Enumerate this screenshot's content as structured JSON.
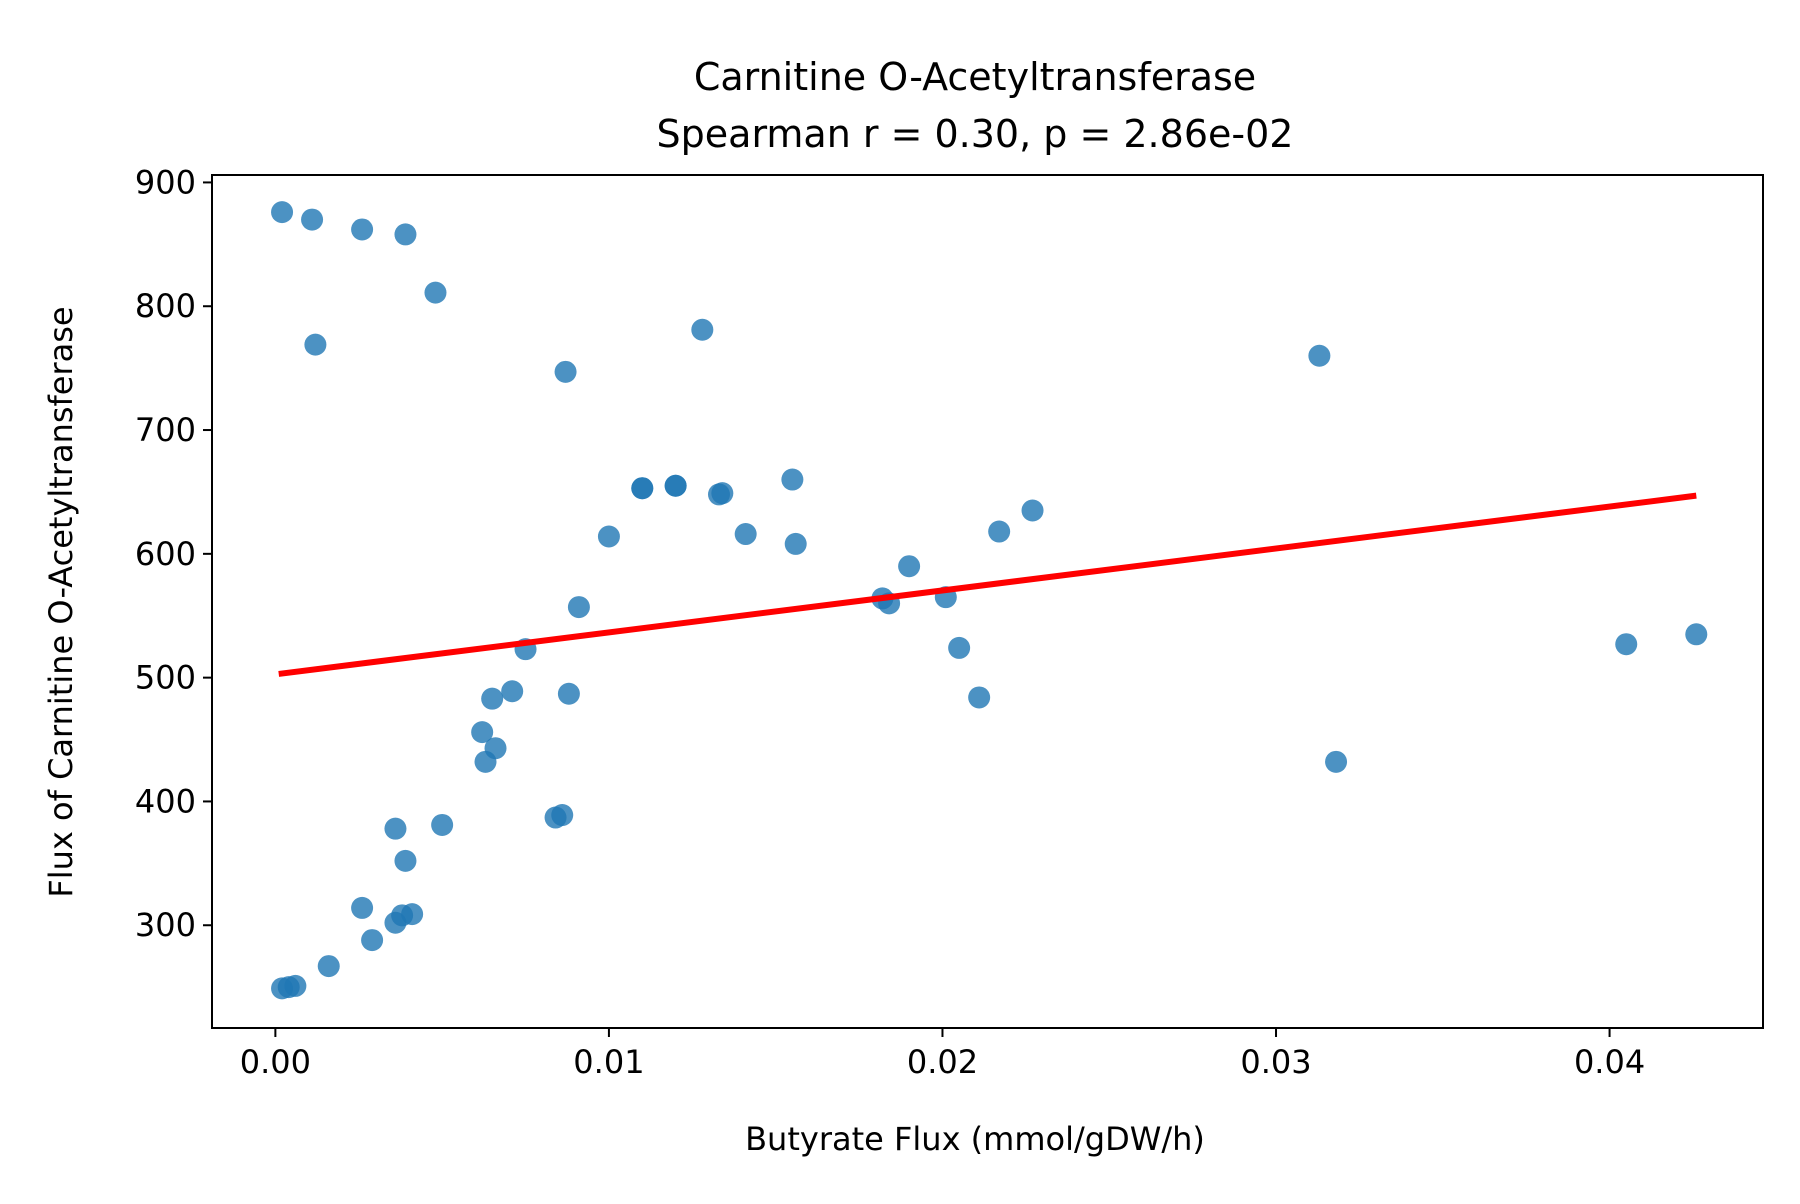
{
  "chart_data": {
    "type": "scatter",
    "title": "Carnitine O-Acetyltransferase",
    "subtitle": "Spearman r = 0.30, p = 2.86e-02",
    "xlabel": "Butyrate Flux (mmol/gDW/h)",
    "ylabel": "Flux of Carnitine O-Acetyltransferase",
    "xlim": [
      -0.0019,
      0.0446
    ],
    "ylim": [
      217,
      906
    ],
    "xticks": [
      0.0,
      0.01,
      0.02,
      0.03,
      0.04
    ],
    "xtick_labels": [
      "0.00",
      "0.01",
      "0.02",
      "0.03",
      "0.04"
    ],
    "yticks": [
      300,
      400,
      500,
      600,
      700,
      800,
      900
    ],
    "ytick_labels": [
      "300",
      "400",
      "500",
      "600",
      "700",
      "800",
      "900"
    ],
    "grid": false,
    "colors": {
      "points": "#1f77b4",
      "fit_line": "#ff0000"
    },
    "series": [
      {
        "type": "scatter",
        "points": [
          [
            0.0002,
            876
          ],
          [
            0.0011,
            870
          ],
          [
            0.0026,
            862
          ],
          [
            0.0039,
            858
          ],
          [
            0.0048,
            811
          ],
          [
            0.0012,
            769
          ],
          [
            0.0087,
            747
          ],
          [
            0.0128,
            781
          ],
          [
            0.0313,
            760
          ],
          [
            0.011,
            653
          ],
          [
            0.011,
            653
          ],
          [
            0.012,
            655
          ],
          [
            0.012,
            655
          ],
          [
            0.0133,
            648
          ],
          [
            0.0134,
            649
          ],
          [
            0.0155,
            660
          ],
          [
            0.01,
            614
          ],
          [
            0.0141,
            616
          ],
          [
            0.0156,
            608
          ],
          [
            0.0091,
            557
          ],
          [
            0.0075,
            523
          ],
          [
            0.0071,
            489
          ],
          [
            0.0065,
            483
          ],
          [
            0.0088,
            487
          ],
          [
            0.0062,
            456
          ],
          [
            0.0066,
            443
          ],
          [
            0.0063,
            432
          ],
          [
            0.0227,
            635
          ],
          [
            0.0217,
            618
          ],
          [
            0.019,
            590
          ],
          [
            0.0182,
            564
          ],
          [
            0.0184,
            560
          ],
          [
            0.0201,
            565
          ],
          [
            0.0205,
            524
          ],
          [
            0.0211,
            484
          ],
          [
            0.0318,
            432
          ],
          [
            0.0405,
            527
          ],
          [
            0.0426,
            535
          ],
          [
            0.0084,
            387
          ],
          [
            0.0086,
            389
          ],
          [
            0.0036,
            378
          ],
          [
            0.005,
            381
          ],
          [
            0.0039,
            352
          ],
          [
            0.0026,
            314
          ],
          [
            0.0036,
            302
          ],
          [
            0.0038,
            308
          ],
          [
            0.0041,
            309
          ],
          [
            0.0029,
            288
          ],
          [
            0.0016,
            267
          ],
          [
            0.0002,
            249
          ],
          [
            0.0004,
            250
          ],
          [
            0.0006,
            251
          ]
        ]
      },
      {
        "type": "line",
        "points": [
          [
            0.0001,
            503
          ],
          [
            0.0426,
            647
          ]
        ]
      }
    ]
  }
}
